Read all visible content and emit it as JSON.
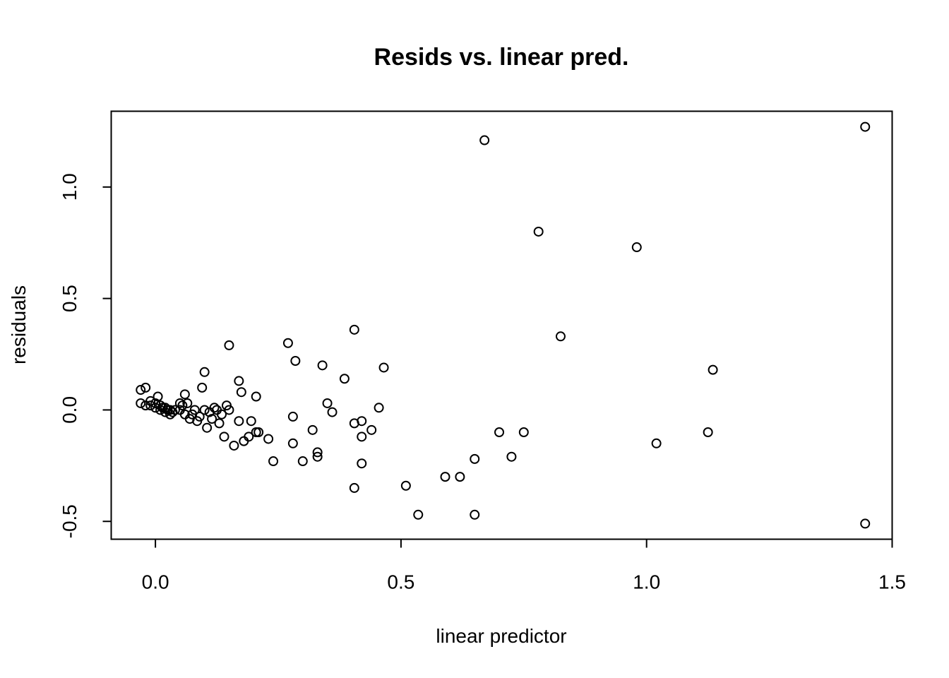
{
  "chart_data": {
    "type": "scatter",
    "title": "Resids vs. linear pred.",
    "xlabel": "linear predictor",
    "ylabel": "residuals",
    "xlim": [
      -0.09,
      1.5
    ],
    "ylim": [
      -0.58,
      1.34
    ],
    "x_ticks": [
      "0.0",
      "0.5",
      "1.0",
      "1.5"
    ],
    "y_ticks": [
      "-0.5",
      "0.0",
      "0.5",
      "1.0"
    ],
    "grid": false,
    "legend": "none",
    "marker": "open-circle",
    "color": "#000000",
    "points": [
      [
        -0.03,
        0.09
      ],
      [
        -0.02,
        0.1
      ],
      [
        -0.03,
        0.03
      ],
      [
        -0.02,
        0.02
      ],
      [
        -0.01,
        0.04
      ],
      [
        -0.01,
        0.02
      ],
      [
        0.0,
        0.03
      ],
      [
        0.0,
        0.01
      ],
      [
        0.005,
        0.06
      ],
      [
        0.01,
        0.02
      ],
      [
        0.01,
        0.0
      ],
      [
        0.015,
        0.01
      ],
      [
        0.02,
        0.01
      ],
      [
        0.02,
        -0.01
      ],
      [
        0.025,
        0.0
      ],
      [
        0.03,
        0.0
      ],
      [
        0.03,
        -0.02
      ],
      [
        0.035,
        -0.01
      ],
      [
        0.04,
        0.0
      ],
      [
        0.05,
        0.0
      ],
      [
        0.05,
        0.03
      ],
      [
        0.055,
        0.02
      ],
      [
        0.06,
        0.07
      ],
      [
        0.06,
        -0.02
      ],
      [
        0.065,
        0.03
      ],
      [
        0.07,
        -0.04
      ],
      [
        0.075,
        -0.02
      ],
      [
        0.08,
        0.0
      ],
      [
        0.085,
        -0.05
      ],
      [
        0.09,
        -0.03
      ],
      [
        0.095,
        0.1
      ],
      [
        0.1,
        0.17
      ],
      [
        0.1,
        0.0
      ],
      [
        0.105,
        -0.08
      ],
      [
        0.11,
        -0.01
      ],
      [
        0.115,
        -0.04
      ],
      [
        0.12,
        0.01
      ],
      [
        0.125,
        0.0
      ],
      [
        0.13,
        -0.06
      ],
      [
        0.135,
        -0.02
      ],
      [
        0.14,
        -0.12
      ],
      [
        0.145,
        0.02
      ],
      [
        0.15,
        0.0
      ],
      [
        0.15,
        0.29
      ],
      [
        0.16,
        -0.16
      ],
      [
        0.17,
        -0.05
      ],
      [
        0.17,
        0.13
      ],
      [
        0.175,
        0.08
      ],
      [
        0.18,
        -0.14
      ],
      [
        0.19,
        -0.12
      ],
      [
        0.195,
        -0.05
      ],
      [
        0.205,
        0.06
      ],
      [
        0.205,
        -0.1
      ],
      [
        0.21,
        -0.1
      ],
      [
        0.23,
        -0.13
      ],
      [
        0.24,
        -0.23
      ],
      [
        0.27,
        0.3
      ],
      [
        0.28,
        -0.03
      ],
      [
        0.28,
        -0.15
      ],
      [
        0.285,
        0.22
      ],
      [
        0.3,
        -0.23
      ],
      [
        0.32,
        -0.09
      ],
      [
        0.33,
        -0.19
      ],
      [
        0.33,
        -0.21
      ],
      [
        0.34,
        0.2
      ],
      [
        0.35,
        0.03
      ],
      [
        0.36,
        -0.01
      ],
      [
        0.385,
        0.14
      ],
      [
        0.405,
        0.36
      ],
      [
        0.405,
        -0.06
      ],
      [
        0.405,
        -0.35
      ],
      [
        0.42,
        -0.05
      ],
      [
        0.42,
        -0.12
      ],
      [
        0.42,
        -0.24
      ],
      [
        0.44,
        -0.09
      ],
      [
        0.455,
        0.01
      ],
      [
        0.465,
        0.19
      ],
      [
        0.51,
        -0.34
      ],
      [
        0.535,
        -0.47
      ],
      [
        0.59,
        -0.3
      ],
      [
        0.62,
        -0.3
      ],
      [
        0.65,
        -0.22
      ],
      [
        0.65,
        -0.47
      ],
      [
        0.67,
        1.21
      ],
      [
        0.7,
        -0.1
      ],
      [
        0.725,
        -0.21
      ],
      [
        0.75,
        -0.1
      ],
      [
        0.78,
        0.8
      ],
      [
        0.825,
        0.33
      ],
      [
        0.98,
        0.73
      ],
      [
        1.02,
        -0.15
      ],
      [
        1.125,
        -0.1
      ],
      [
        1.135,
        0.18
      ],
      [
        1.445,
        1.27
      ],
      [
        1.445,
        -0.51
      ]
    ]
  }
}
